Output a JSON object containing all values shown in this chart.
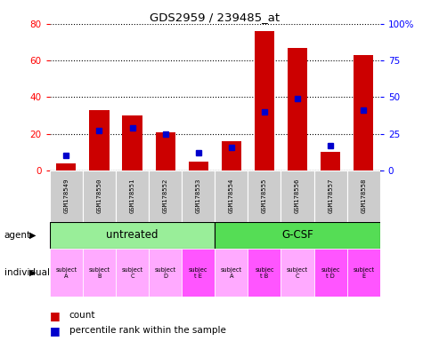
{
  "title": "GDS2959 / 239485_at",
  "samples": [
    "GSM178549",
    "GSM178550",
    "GSM178551",
    "GSM178552",
    "GSM178553",
    "GSM178554",
    "GSM178555",
    "GSM178556",
    "GSM178557",
    "GSM178558"
  ],
  "count": [
    4,
    33,
    30,
    21,
    5,
    16,
    76,
    67,
    10,
    63
  ],
  "percentile_pct": [
    10,
    27,
    29,
    25,
    12,
    16,
    40,
    49,
    17,
    41
  ],
  "bar_color": "#cc0000",
  "blue_color": "#0000cc",
  "ylim_left": [
    0,
    80
  ],
  "ylim_right": [
    0,
    100
  ],
  "yticks_left": [
    0,
    20,
    40,
    60,
    80
  ],
  "yticks_right": [
    0,
    25,
    50,
    75,
    100
  ],
  "ytick_labels_right": [
    "0",
    "25",
    "50",
    "75",
    "100%"
  ],
  "agent_untreated_label": "untreated",
  "agent_gcsf_label": "G-CSF",
  "agent_color_untreated": "#99ee99",
  "agent_color_gcsf": "#55dd55",
  "individual_labels": [
    "subject\nA",
    "subject\nB",
    "subject\nC",
    "subject\nD",
    "subjec\nt E",
    "subject\nA",
    "subjec\nt B",
    "subject\nC",
    "subjec\nt D",
    "subject\nE"
  ],
  "individual_colors_light": "#ffaaff",
  "individual_colors_dark": "#ff55ff",
  "individual_dark_idx": [
    4,
    6,
    8,
    9
  ],
  "sample_bg": "#cccccc",
  "legend_count_label": "count",
  "legend_pct_label": "percentile rank within the sample"
}
